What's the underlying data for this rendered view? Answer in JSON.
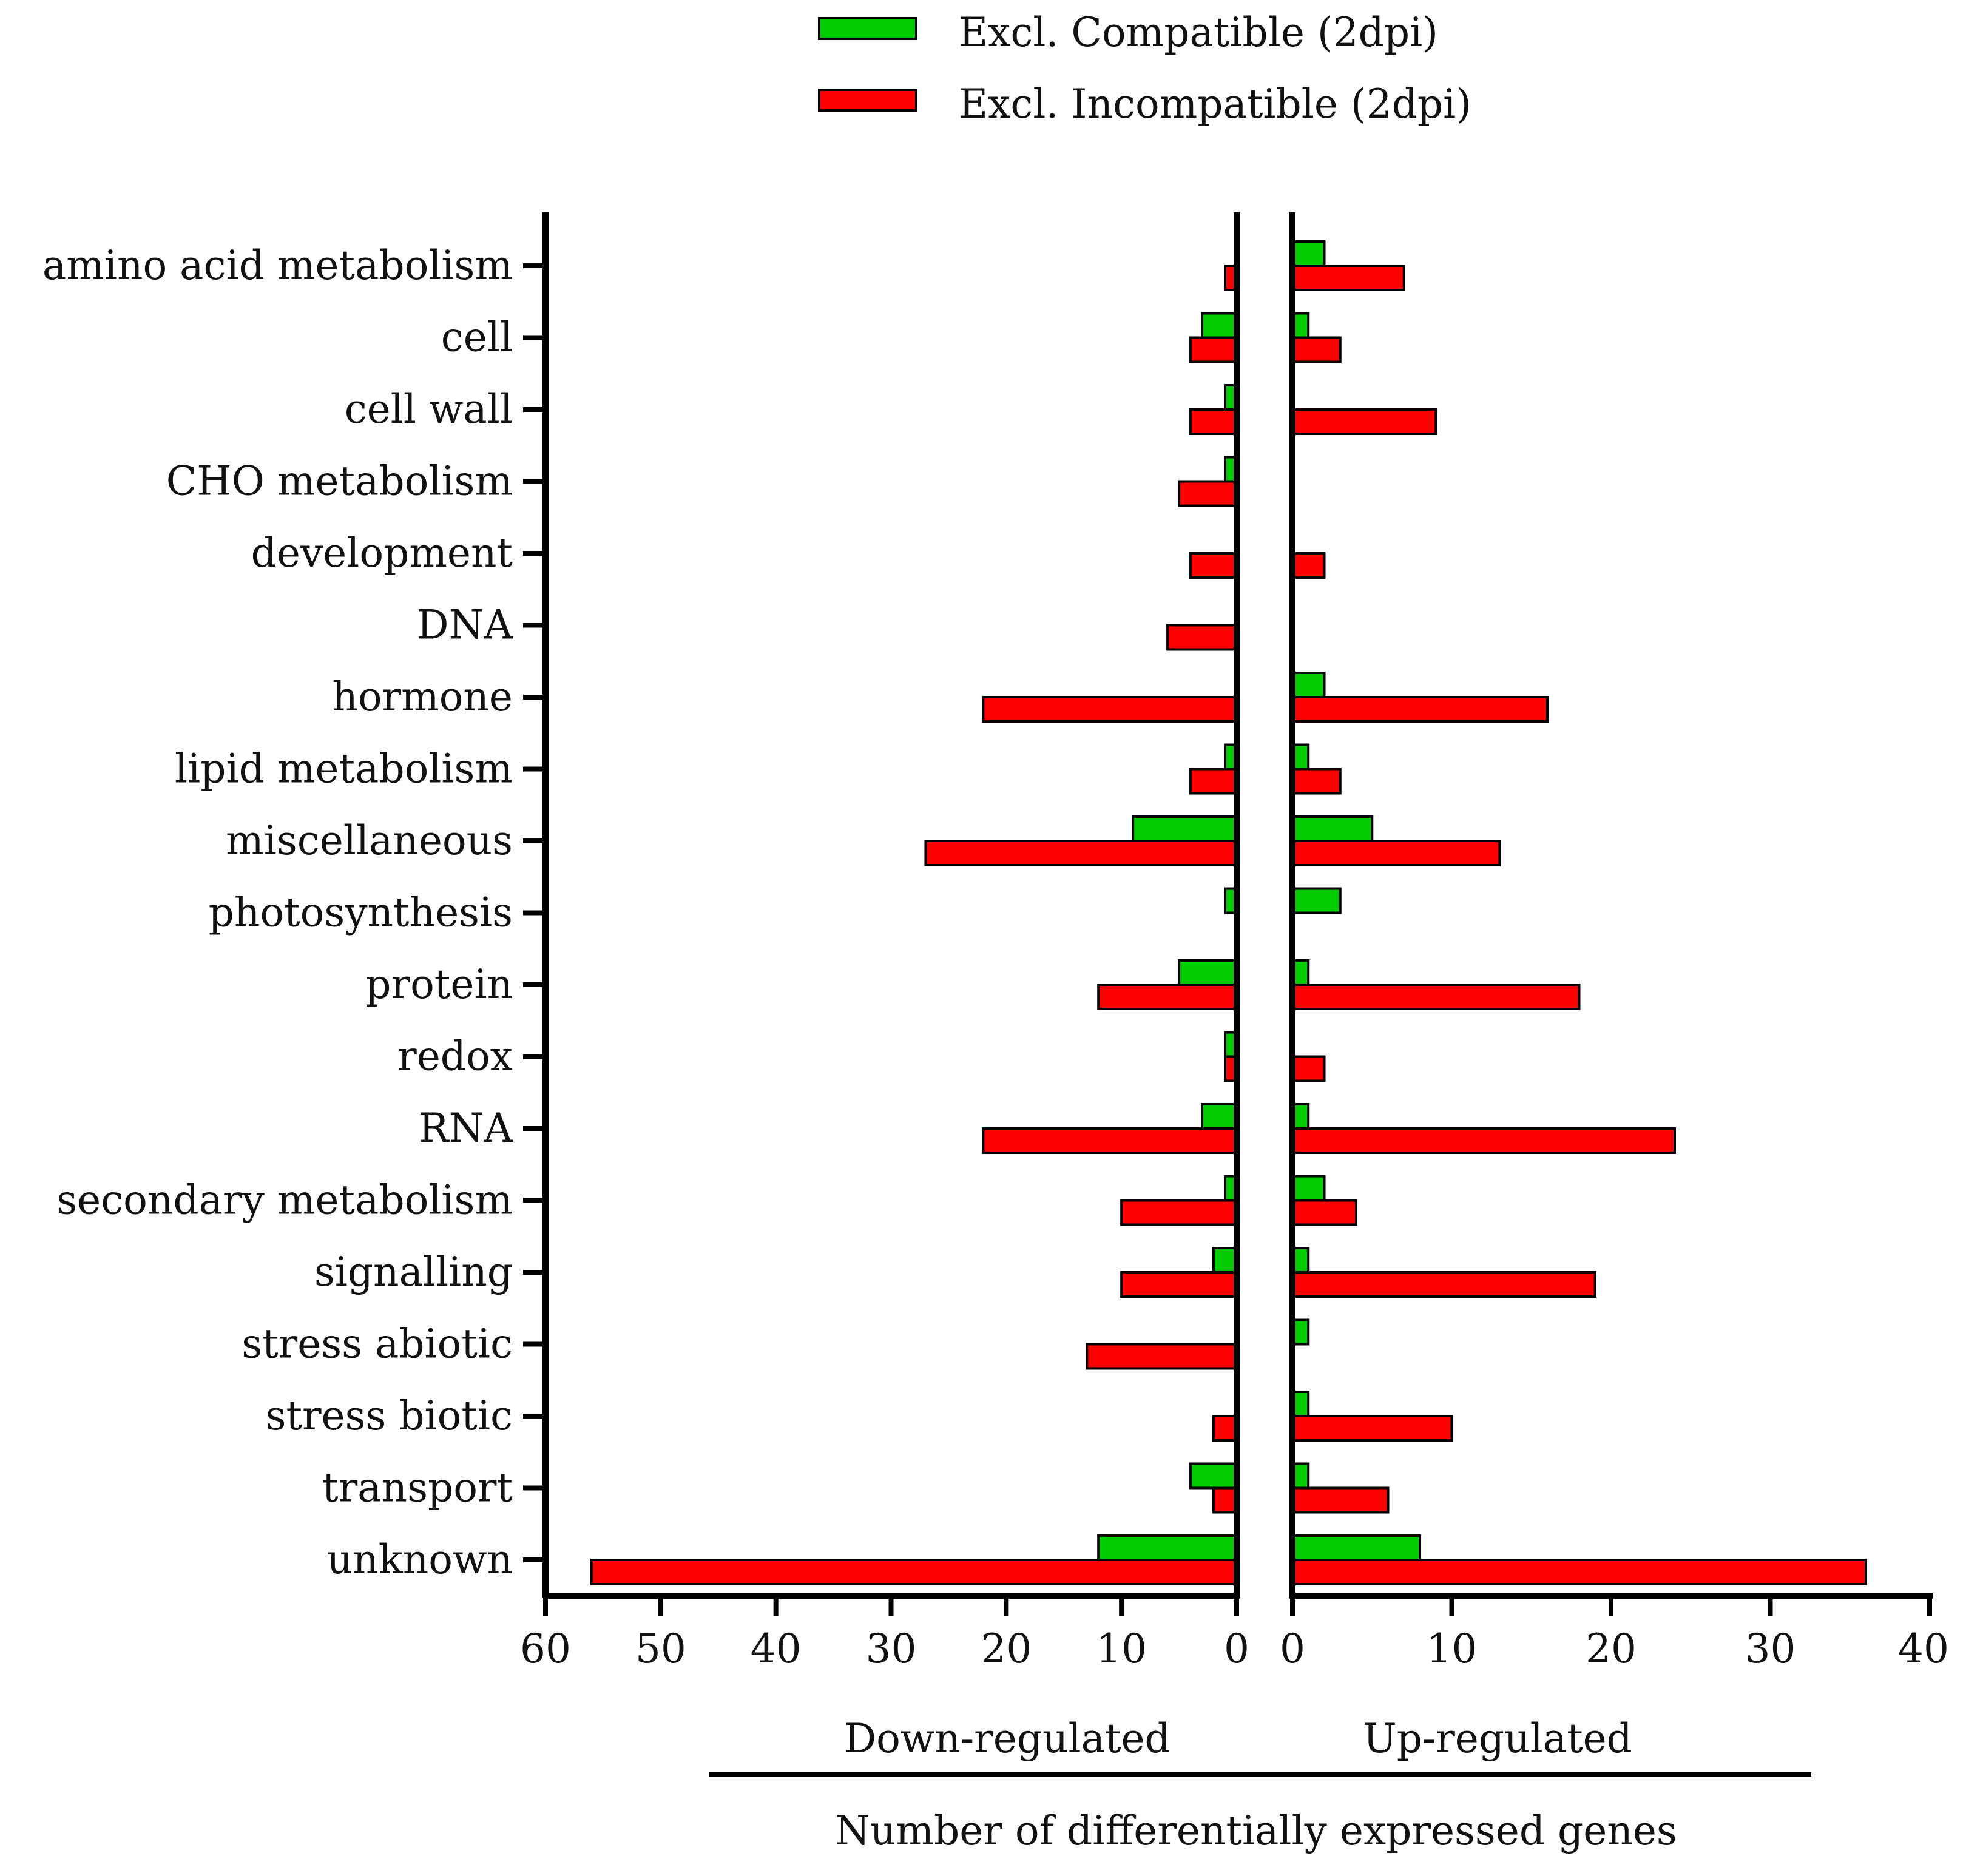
{
  "chart_data": {
    "type": "bar",
    "orientation": "horizontal",
    "categories": [
      "amino acid metabolism",
      "cell",
      "cell wall",
      "CHO metabolism",
      "development",
      "DNA",
      "hormone",
      "lipid metabolism",
      "miscellaneous",
      "photosynthesis",
      "protein",
      "redox",
      "RNA",
      "secondary metabolism",
      "signalling",
      "stress abiotic",
      "stress biotic",
      "transport",
      "unknown"
    ],
    "legend": [
      {
        "name": "Excl. Compatible (2dpi)",
        "color": "#00cc00"
      },
      {
        "name": "Excl. Incompatible (2dpi)",
        "color": "#ff0000"
      }
    ],
    "panels": {
      "down": {
        "label": "Down-regulated",
        "xlim": [
          60,
          0
        ],
        "ticks": [
          "60",
          "50",
          "40",
          "30",
          "20",
          "10",
          "0"
        ],
        "series": [
          {
            "name": "Excl. Compatible (2dpi)",
            "values": [
              0,
              3,
              1,
              1,
              0,
              0,
              0,
              1,
              9,
              1,
              5,
              1,
              3,
              1,
              2,
              0,
              0,
              4,
              12
            ]
          },
          {
            "name": "Excl. Incompatible (2dpi)",
            "values": [
              1,
              4,
              4,
              5,
              4,
              6,
              22,
              4,
              27,
              0,
              12,
              1,
              22,
              10,
              10,
              13,
              2,
              2,
              56
            ]
          }
        ]
      },
      "up": {
        "label": "Up-regulated",
        "xlim": [
          0,
          40
        ],
        "ticks": [
          "0",
          "10",
          "20",
          "30",
          "40"
        ],
        "series": [
          {
            "name": "Excl. Compatible (2dpi)",
            "values": [
              2,
              1,
              0,
              0,
              0,
              0,
              2,
              1,
              5,
              3,
              1,
              0,
              1,
              2,
              1,
              1,
              1,
              1,
              8
            ]
          },
          {
            "name": "Excl. Incompatible (2dpi)",
            "values": [
              7,
              3,
              9,
              0,
              2,
              0,
              16,
              3,
              13,
              0,
              18,
              2,
              24,
              4,
              19,
              0,
              10,
              6,
              36
            ]
          }
        ]
      }
    },
    "xlabel": "Number of differentially expressed genes"
  }
}
